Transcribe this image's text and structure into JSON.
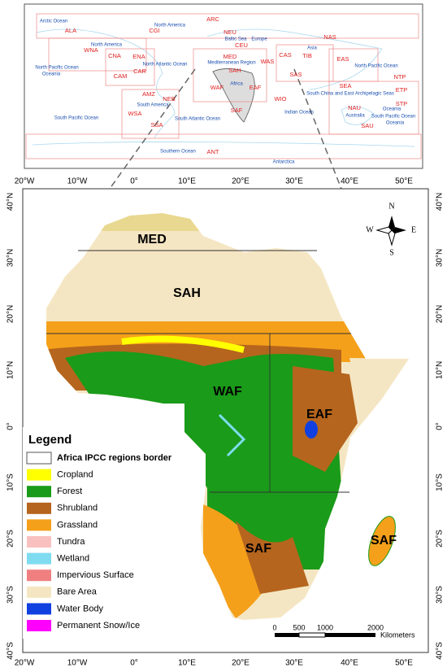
{
  "inset_map": {
    "region_labels": [
      "ARC",
      "ALA",
      "CGI",
      "NEU",
      "CEU",
      "WNA",
      "CNA",
      "ENA",
      "MED",
      "WAS",
      "CAS",
      "TIB",
      "NAS",
      "EAS",
      "CAR",
      "CAM",
      "SAH",
      "SAS",
      "NTP",
      "WAF",
      "EAF",
      "SEA",
      "ETP",
      "AMZ",
      "NEB",
      "WIO",
      "NAU",
      "STP",
      "WSA",
      "SAF",
      "SSA",
      "SAU",
      "ANT"
    ],
    "geographic_labels": [
      "Arctic Ocean",
      "North America",
      "Baltic Sea",
      "Europe",
      "North America",
      "Asia",
      "Mediterranean Region",
      "North Atlantic Ocean",
      "North Pacific Ocean",
      "Oceania",
      "North Pacific Ocean",
      "Africa",
      "South China and East Archipelagic Seas",
      "South America",
      "Indian Ocean",
      "Australia",
      "Oceania",
      "South Pacific Ocean",
      "Oceania",
      "South Pacific Ocean",
      "South Atlantic Ocean",
      "Southern Ocean",
      "Antarctica"
    ]
  },
  "main_map": {
    "longitude_labels": [
      "20°W",
      "10°W",
      "0°",
      "10°E",
      "20°E",
      "30°E",
      "40°E",
      "50°E"
    ],
    "latitude_labels": [
      "40°N",
      "30°N",
      "20°N",
      "10°N",
      "0°",
      "10°S",
      "20°S",
      "30°S",
      "40°S"
    ],
    "region_labels": [
      "MED",
      "SAH",
      "WAF",
      "EAF",
      "SAF",
      "SAF"
    ],
    "compass": {
      "north": "N",
      "south": "S",
      "east": "E",
      "west": "W"
    },
    "scale_bar": {
      "ticks": [
        0,
        500,
        1000,
        2000
      ],
      "unit": "Kilometers"
    }
  },
  "legend": {
    "title": "Legend",
    "items": [
      {
        "label": "Africa IPCC regions border",
        "color": "#ffffff"
      },
      {
        "label": "Cropland",
        "color": "#ffff00"
      },
      {
        "label": "Forest",
        "color": "#1a9b1a"
      },
      {
        "label": "Shrubland",
        "color": "#b5651d"
      },
      {
        "label": "Grassland",
        "color": "#f5a01a"
      },
      {
        "label": "Tundra",
        "color": "#f9c0c0"
      },
      {
        "label": "Wetland",
        "color": "#7fdcf0"
      },
      {
        "label": "Impervious Surface",
        "color": "#f08080"
      },
      {
        "label": "Bare Area",
        "color": "#f5e6c3"
      },
      {
        "label": "Water Body",
        "color": "#1040e0"
      },
      {
        "label": "Permanent Snow/Ice",
        "color": "#ff00ff"
      }
    ]
  }
}
